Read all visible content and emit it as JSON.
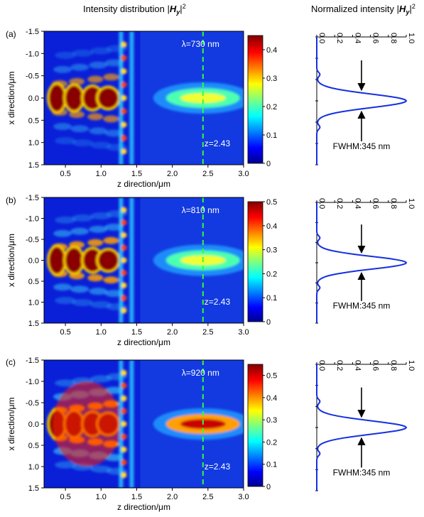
{
  "titles": {
    "left_prefix": "Intensity distribution |",
    "left_var": "H",
    "left_sub": "y",
    "left_suffix": "|",
    "left_sup": "2",
    "right_prefix": "Normalized intensity |",
    "right_var": "H",
    "right_sub": "y",
    "right_suffix": "|",
    "right_sup": "2"
  },
  "chart_data": [
    {
      "panel": "(a)",
      "type": "heatmap",
      "xlabel": "z direction/μm",
      "ylabel": "x direction/μm",
      "xticks": [
        "0.5",
        "1.0",
        "1.5",
        "2.0",
        "2.5",
        "3.0"
      ],
      "yticks": [
        "-1.5",
        "-1.0",
        "-0.5",
        "0.0",
        "0.5",
        "1.0",
        "1.5"
      ],
      "xlim": [
        0.2,
        3.0
      ],
      "ylim": [
        -1.5,
        1.5
      ],
      "wavelength_label": "λ=730 nm",
      "z_label": "z=2.43",
      "focus_z": 2.43,
      "colorbar": {
        "ticks": [
          "0",
          "0.1",
          "0.2",
          "0.3",
          "0.4"
        ],
        "max": 0.45
      },
      "profile": {
        "type": "line",
        "xlabel": "Normalized intensity",
        "xticks": [
          "0.0",
          "0.2",
          "0.4",
          "0.6",
          "0.8",
          "1.0"
        ],
        "xlim": [
          0,
          1
        ],
        "peak_x": 0.0,
        "peak": 1.0,
        "fwhm_label": "FWHM:345 nm",
        "color": "#1530e0"
      }
    },
    {
      "panel": "(b)",
      "type": "heatmap",
      "xlabel": "z direction/μm",
      "ylabel": "x direction/μm",
      "xticks": [
        "0.5",
        "1.0",
        "1.5",
        "2.0",
        "2.5",
        "3.0"
      ],
      "yticks": [
        "-1.5",
        "-1.0",
        "-0.5",
        "0.0",
        "0.5",
        "1.0",
        "1.5"
      ],
      "xlim": [
        0.2,
        3.0
      ],
      "ylim": [
        -1.5,
        1.5
      ],
      "wavelength_label": "λ=810 nm",
      "z_label": "z=2.43",
      "focus_z": 2.43,
      "colorbar": {
        "ticks": [
          "0",
          "0.1",
          "0.2",
          "0.3",
          "0.4",
          "0.5"
        ],
        "max": 0.5
      },
      "profile": {
        "type": "line",
        "xlabel": "Normalized intensity",
        "xticks": [
          "0.0",
          "0.2",
          "0.4",
          "0.6",
          "0.8",
          "1.0"
        ],
        "xlim": [
          0,
          1
        ],
        "peak_x": 0.0,
        "peak": 1.0,
        "fwhm_label": "FWHM:345 nm",
        "color": "#1530e0"
      }
    },
    {
      "panel": "(c)",
      "type": "heatmap",
      "xlabel": "z direction/μm",
      "ylabel": "x direction/μm",
      "xticks": [
        "0.5",
        "1.0",
        "1.5",
        "2.0",
        "2.5",
        "3.0"
      ],
      "yticks": [
        "-1.5",
        "-1.0",
        "-0.5",
        "0.0",
        "0.5",
        "1.0",
        "1.5"
      ],
      "xlim": [
        0.2,
        3.0
      ],
      "ylim": [
        -1.5,
        1.5
      ],
      "wavelength_label": "λ=920 nm",
      "z_label": "z=2.43",
      "focus_z": 2.43,
      "colorbar": {
        "ticks": [
          "0",
          "0.1",
          "0.2",
          "0.3",
          "0.4",
          "0.5"
        ],
        "max": 0.55
      },
      "profile": {
        "type": "line",
        "xlabel": "Normalized intensity",
        "xticks": [
          "0.0",
          "0.2",
          "0.4",
          "0.6",
          "0.8",
          "1.0"
        ],
        "xlim": [
          0,
          1
        ],
        "peak_x": 0.0,
        "peak": 1.0,
        "fwhm_label": "FWHM:345 nm",
        "color": "#1530e0"
      }
    }
  ]
}
